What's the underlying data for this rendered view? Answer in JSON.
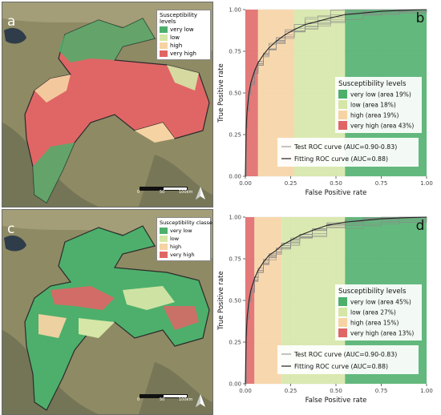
{
  "colors": {
    "very_low": "#4daf6b",
    "low": "#d5e6a6",
    "high": "#f6d3a3",
    "very_high": "#e06666",
    "grid": "#e9e9e9",
    "plot_bg": "#ffffff",
    "imagery_dark": "#6e6f52",
    "imagery_mid": "#8e8a64",
    "imagery_light": "#a9a27c",
    "lake": "#2f3d4a"
  },
  "icons": [
    "north-arrow-icon"
  ],
  "map_a": {
    "label": "a",
    "legend_title": "Susceptibility levels",
    "legend_items": [
      "very low",
      "low",
      "high",
      "very high"
    ],
    "scale_labels": [
      "0",
      "50",
      "100km"
    ]
  },
  "map_c": {
    "label": "c",
    "legend_title": "Susceptibility classes",
    "legend_items": [
      "very low",
      "low",
      "high",
      "very high"
    ],
    "scale_labels": [
      "0",
      "50",
      "100km"
    ]
  },
  "chart_data": [
    {
      "type": "line",
      "panel_label": "b",
      "xlabel": "False Positive rate",
      "ylabel": "True Positive rate",
      "xlim": [
        0,
        1
      ],
      "ylim": [
        0,
        1
      ],
      "xticks": [
        "0.00",
        "0.25",
        "0.50",
        "0.75",
        "1.00"
      ],
      "yticks": [
        "0.00",
        "0.25",
        "0.50",
        "0.75",
        "1.00"
      ],
      "grid": true,
      "class_bands": [
        {
          "level": "very high",
          "x_from": 0.0,
          "x_to": 0.07
        },
        {
          "level": "high",
          "x_from": 0.07,
          "x_to": 0.27
        },
        {
          "level": "low",
          "x_from": 0.27,
          "x_to": 0.55
        },
        {
          "level": "very low",
          "x_from": 0.55,
          "x_to": 1.0
        }
      ],
      "legend_title": "Susceptibility levels",
      "legend_items": [
        "very low (area 19%)",
        "low (area 18%)",
        "high (area 19%)",
        "very high (area 43%)"
      ],
      "legend_placement": "center-right",
      "curve_legend": [
        "Test ROC curve (AUC=0.90-0.83)",
        "Fitting ROC curve (AUC=0.88)"
      ],
      "series": [
        {
          "name": "Fitting ROC curve (AUC=0.88)",
          "x": [
            0,
            0.005,
            0.01,
            0.02,
            0.03,
            0.05,
            0.07,
            0.1,
            0.13,
            0.17,
            0.22,
            0.27,
            0.33,
            0.4,
            0.47,
            0.55,
            0.65,
            0.75,
            0.85,
            1.0
          ],
          "y": [
            0,
            0.3,
            0.4,
            0.5,
            0.56,
            0.63,
            0.68,
            0.73,
            0.77,
            0.81,
            0.85,
            0.88,
            0.91,
            0.93,
            0.95,
            0.97,
            0.98,
            0.99,
            0.995,
            1.0
          ]
        }
      ]
    },
    {
      "type": "line",
      "panel_label": "d",
      "xlabel": "False Positive rate",
      "ylabel": "True Positive rate",
      "xlim": [
        0,
        1
      ],
      "ylim": [
        0,
        1
      ],
      "xticks": [
        "0.00",
        "0.25",
        "0.50",
        "0.75",
        "1.00"
      ],
      "yticks": [
        "0.00",
        "0.25",
        "0.50",
        "0.75",
        "1.00"
      ],
      "grid": true,
      "class_bands": [
        {
          "level": "very high",
          "x_from": 0.0,
          "x_to": 0.05
        },
        {
          "level": "high",
          "x_from": 0.05,
          "x_to": 0.2
        },
        {
          "level": "low",
          "x_from": 0.2,
          "x_to": 0.55
        },
        {
          "level": "very low",
          "x_from": 0.55,
          "x_to": 1.0
        }
      ],
      "legend_title": "Susceptibility levels",
      "legend_items": [
        "very low (area 45%)",
        "low (area 27%)",
        "high (area 15%)",
        "very high (area 13%)"
      ],
      "legend_placement": "center-right",
      "curve_legend": [
        "Test ROC curve (AUC=0.90-0.83)",
        "Fitting ROC curve (AUC=0.88)"
      ],
      "series": [
        {
          "name": "Fitting ROC curve (AUC=0.88)",
          "x": [
            0,
            0.005,
            0.01,
            0.02,
            0.03,
            0.05,
            0.07,
            0.1,
            0.13,
            0.17,
            0.2,
            0.25,
            0.3,
            0.37,
            0.45,
            0.55,
            0.65,
            0.75,
            0.85,
            1.0
          ],
          "y": [
            0,
            0.3,
            0.4,
            0.5,
            0.56,
            0.63,
            0.68,
            0.73,
            0.77,
            0.8,
            0.83,
            0.86,
            0.89,
            0.92,
            0.95,
            0.97,
            0.98,
            0.99,
            0.995,
            1.0
          ]
        }
      ]
    }
  ]
}
